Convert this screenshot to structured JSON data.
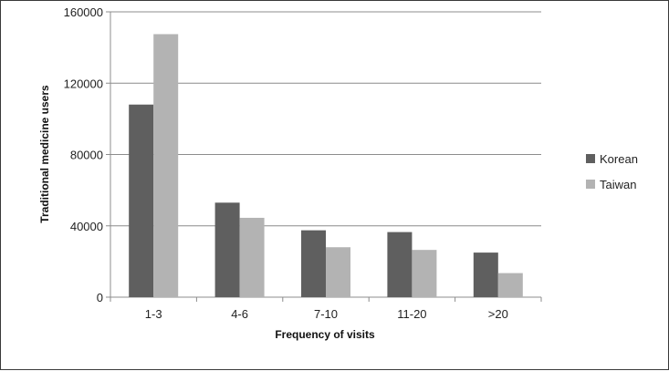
{
  "chart_data": {
    "type": "bar",
    "title": "",
    "xlabel": "Frequency of visits",
    "ylabel": "Traditional  medicine users",
    "categories": [
      "1-3",
      "4-6",
      "7-10",
      "11-20",
      ">20"
    ],
    "series": [
      {
        "name": "Korean",
        "color": "#5f5f5f",
        "values": [
          108000,
          53000,
          37500,
          36500,
          25000
        ]
      },
      {
        "name": "Taiwan",
        "color": "#b3b3b3",
        "values": [
          147500,
          44500,
          28000,
          26500,
          13500
        ]
      }
    ],
    "ylim": [
      0,
      160000
    ],
    "yticks": [
      "0",
      "40000",
      "80000",
      "120000",
      "160000"
    ],
    "grid": "horizontal",
    "legend": "right"
  }
}
